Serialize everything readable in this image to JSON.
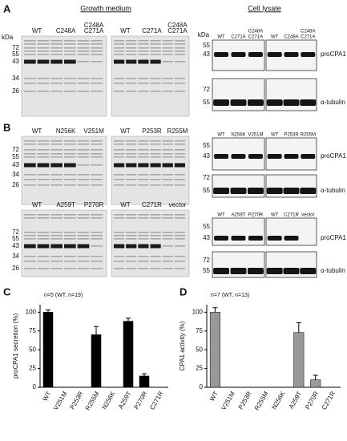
{
  "panel_labels": [
    "A",
    "B",
    "C",
    "D"
  ],
  "headers": [
    "Growth medium",
    "Cell lysate"
  ],
  "gel_common": {
    "kda": "kDa",
    "markers": [
      "72",
      "55",
      "43",
      "34",
      "26"
    ],
    "blot_markers_top": [
      "55",
      "43"
    ],
    "blot_markers_bottom": [
      "72",
      "55"
    ],
    "blot_names": [
      "proCPA1",
      "α-tubulin"
    ]
  },
  "rows": [
    {
      "gels": [
        {
          "lanes": [
            "WT",
            "C248A",
            [
              "C248A",
              "C271A"
            ]
          ]
        },
        {
          "lanes": [
            "WT",
            "C271A",
            [
              "C248A",
              "C271A"
            ]
          ]
        }
      ],
      "blots": [
        {
          "lanes": [
            "WT",
            "C271A",
            [
              "C248A",
              "C271A"
            ]
          ]
        },
        {
          "lanes": [
            "WT",
            "C248A",
            [
              "C248A",
              "C271A"
            ]
          ]
        }
      ]
    },
    {
      "gels": [
        {
          "lanes": [
            "WT",
            "N256K",
            "V251M"
          ]
        },
        {
          "lanes": [
            "WT",
            "P253R",
            "R255M"
          ]
        }
      ],
      "blots": [
        {
          "lanes": [
            "WT",
            "N256K",
            "V251M"
          ]
        },
        {
          "lanes": [
            "WT",
            "P253R",
            "R255M"
          ]
        }
      ]
    },
    {
      "gels": [
        {
          "lanes": [
            "WT",
            "A259T",
            "P270R"
          ]
        },
        {
          "lanes": [
            "WT",
            "C271R",
            "vector"
          ]
        }
      ],
      "blots": [
        {
          "lanes": [
            "WT",
            "A259T",
            "P270R"
          ]
        },
        {
          "lanes": [
            "WT",
            "C271R",
            "vector"
          ]
        }
      ]
    }
  ],
  "chart_data": [
    {
      "type": "bar",
      "annotation": "n=5 (WT, n=19)",
      "ylabel": "proCPA1 secretion (%)",
      "categories": [
        "WT",
        "V251M",
        "P253R",
        "R255M",
        "N256K",
        "A259T",
        "P270R",
        "C271R"
      ],
      "values": [
        100,
        0,
        0,
        70,
        0,
        88,
        15,
        0
      ],
      "errors": [
        3,
        null,
        null,
        11,
        null,
        4,
        3,
        null
      ],
      "color": "#000000",
      "ylim": [
        0,
        110
      ],
      "yticks": [
        0,
        25,
        50,
        75,
        100
      ]
    },
    {
      "type": "bar",
      "annotation": "n=7 (WT, n=13)",
      "ylabel": "CPA1 activity (%)",
      "categories": [
        "WT",
        "V251M",
        "P253R",
        "R255M",
        "N256K",
        "A259T",
        "P270R",
        "C271R"
      ],
      "values": [
        100,
        0,
        0,
        0,
        0,
        73,
        10,
        0
      ],
      "errors": [
        6,
        null,
        null,
        null,
        null,
        13,
        6,
        null
      ],
      "color": "#999999",
      "ylim": [
        0,
        110
      ],
      "yticks": [
        0,
        25,
        50,
        75,
        100
      ]
    }
  ]
}
